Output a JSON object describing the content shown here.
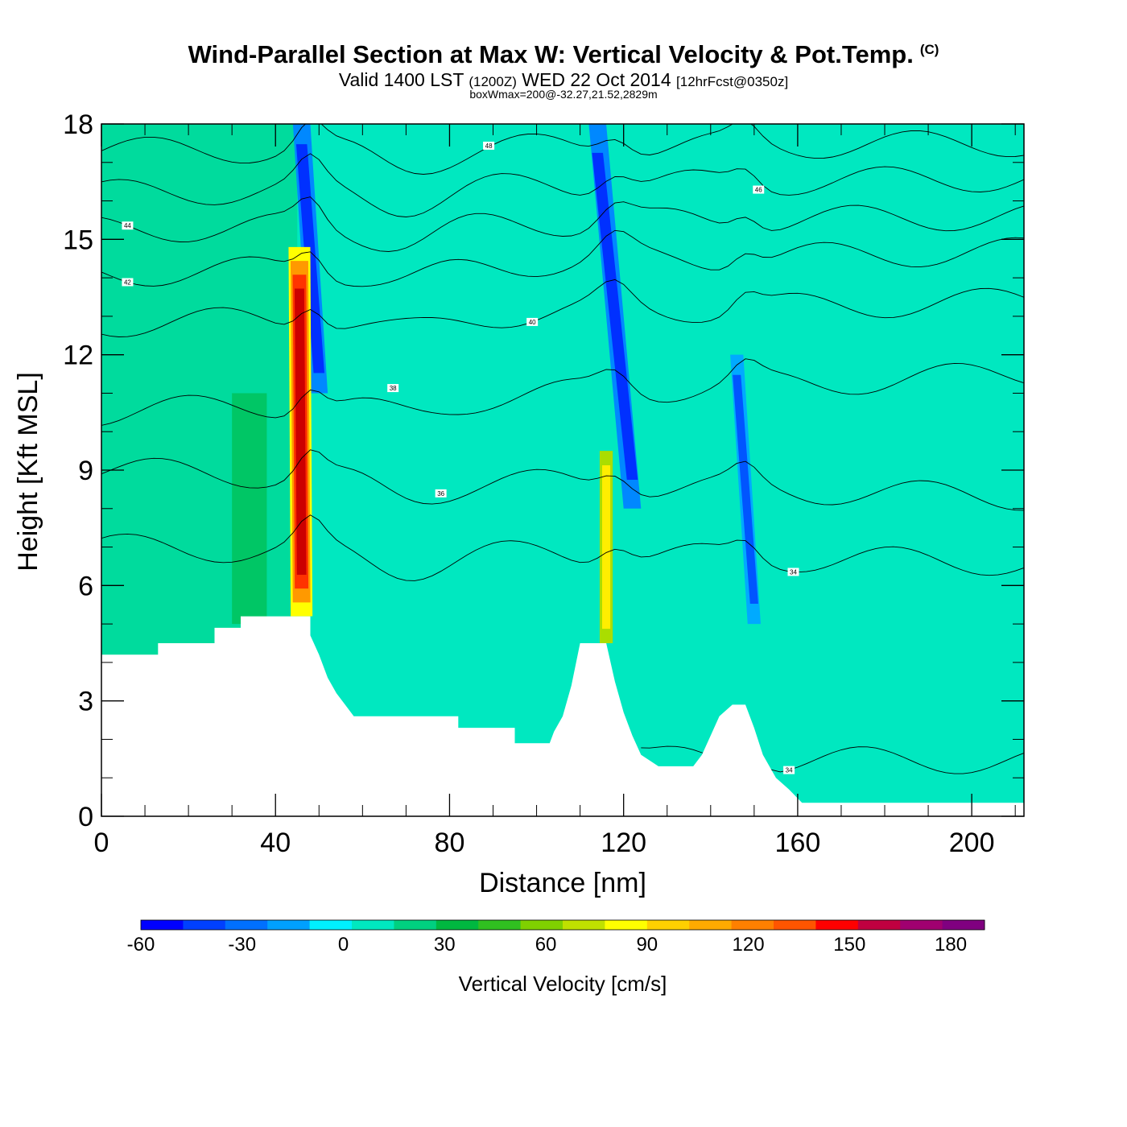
{
  "chart_data": {
    "type": "heatmap",
    "title": "Wind-Parallel Section at Max W: Vertical Velocity & Pot.Temp.",
    "title_mark": "(C)",
    "subtitle": {
      "valid_prefix": "Valid 1400 LST",
      "utc": "(1200Z)",
      "date": "WED 22 Oct 2014",
      "forecast": "[12hrFcst@0350z]"
    },
    "annotation": "boxWmax=200@-32.27,21.52,2829m",
    "xlabel": "Distance [nm]",
    "ylabel": "Height [Kft MSL]",
    "xlim": [
      0,
      212
    ],
    "ylim": [
      0,
      18
    ],
    "xticks": [
      {
        "value": 0,
        "label": "0"
      },
      {
        "value": 40,
        "label": "40"
      },
      {
        "value": 80,
        "label": "80"
      },
      {
        "value": 120,
        "label": "120"
      },
      {
        "value": 160,
        "label": "160"
      },
      {
        "value": 200,
        "label": "200"
      }
    ],
    "yticks": [
      {
        "value": 0,
        "label": "0"
      },
      {
        "value": 3,
        "label": "3"
      },
      {
        "value": 6,
        "label": "6"
      },
      {
        "value": 9,
        "label": "9"
      },
      {
        "value": 12,
        "label": "12"
      },
      {
        "value": 15,
        "label": "15"
      },
      {
        "value": 18,
        "label": "18"
      }
    ],
    "background_color": "#00e8c0",
    "velocity_features": [
      {
        "kind": "downdraft",
        "x_bottom": 50,
        "x_top": 46,
        "y_bottom": 11,
        "y_top": 18,
        "width": 4,
        "colors": [
          "#0088ff",
          "#0030ff"
        ]
      },
      {
        "kind": "updraft",
        "x_bottom": 46,
        "x_top": 45.5,
        "y_bottom": 5.2,
        "y_top": 14.8,
        "width": 5,
        "colors": [
          "#ffff00",
          "#ff9900",
          "#ff3300",
          "#cc0000"
        ]
      },
      {
        "kind": "downdraft",
        "x_bottom": 122,
        "x_top": 114,
        "y_bottom": 8,
        "y_top": 18,
        "width": 4,
        "colors": [
          "#0088ff",
          "#0030ff"
        ]
      },
      {
        "kind": "updraft",
        "x_bottom": 116,
        "x_top": 116,
        "y_bottom": 4.5,
        "y_top": 9.5,
        "width": 3,
        "colors": [
          "#aadd00",
          "#ffee00"
        ]
      },
      {
        "kind": "downdraft",
        "x_bottom": 150,
        "x_top": 146,
        "y_bottom": 5,
        "y_top": 12,
        "width": 3,
        "colors": [
          "#00aaff",
          "#0055ff"
        ]
      }
    ],
    "terrain": [
      {
        "x": 0,
        "y": 4.2
      },
      {
        "x": 13,
        "y": 4.2
      },
      {
        "x": 13,
        "y": 4.5
      },
      {
        "x": 26,
        "y": 4.5
      },
      {
        "x": 26,
        "y": 4.9
      },
      {
        "x": 32,
        "y": 4.9
      },
      {
        "x": 32,
        "y": 5.2
      },
      {
        "x": 48,
        "y": 5.2
      },
      {
        "x": 48,
        "y": 4.7
      },
      {
        "x": 50,
        "y": 4.2
      },
      {
        "x": 52,
        "y": 3.6
      },
      {
        "x": 54,
        "y": 3.2
      },
      {
        "x": 56,
        "y": 2.9
      },
      {
        "x": 58,
        "y": 2.6
      },
      {
        "x": 82,
        "y": 2.6
      },
      {
        "x": 82,
        "y": 2.3
      },
      {
        "x": 95,
        "y": 2.3
      },
      {
        "x": 95,
        "y": 1.9
      },
      {
        "x": 103,
        "y": 1.9
      },
      {
        "x": 104,
        "y": 2.2
      },
      {
        "x": 106,
        "y": 2.6
      },
      {
        "x": 108,
        "y": 3.4
      },
      {
        "x": 110,
        "y": 4.5
      },
      {
        "x": 116,
        "y": 4.5
      },
      {
        "x": 118,
        "y": 3.5
      },
      {
        "x": 120,
        "y": 2.7
      },
      {
        "x": 122,
        "y": 2.1
      },
      {
        "x": 124,
        "y": 1.6
      },
      {
        "x": 128,
        "y": 1.3
      },
      {
        "x": 136,
        "y": 1.3
      },
      {
        "x": 138,
        "y": 1.6
      },
      {
        "x": 140,
        "y": 2.1
      },
      {
        "x": 142,
        "y": 2.6
      },
      {
        "x": 145,
        "y": 2.9
      },
      {
        "x": 148,
        "y": 2.9
      },
      {
        "x": 150,
        "y": 2.3
      },
      {
        "x": 152,
        "y": 1.6
      },
      {
        "x": 155,
        "y": 1.0
      },
      {
        "x": 158,
        "y": 0.7
      },
      {
        "x": 161,
        "y": 0.35
      },
      {
        "x": 212,
        "y": 0.35
      }
    ],
    "theta_contours": [
      {
        "label": "48",
        "y_left": 17.3,
        "y_right": 17.5,
        "label_x": 89
      },
      {
        "label": "46",
        "y_left": 16.2,
        "y_right": 16.6,
        "label_x": 151
      },
      {
        "label": "44",
        "y_left": 15.25,
        "y_right": 15.6,
        "label_x": 6
      },
      {
        "label": "42",
        "y_left": 14.1,
        "y_right": 14.7,
        "label_x": 6
      },
      {
        "label": "40",
        "y_left": 12.8,
        "y_right": 13.4,
        "label_x": 99
      },
      {
        "label": "38",
        "y_left": 10.5,
        "y_right": 11.5,
        "label_x": 67
      },
      {
        "label": "36",
        "y_left": 9.0,
        "y_right": 8.3,
        "label_x": 78
      },
      {
        "label": "34",
        "y_left": 7.0,
        "y_right": 6.6,
        "label_x": 159
      },
      {
        "label": "34",
        "y_left": 1.5,
        "y_right": 1.45,
        "label_x": 158
      }
    ],
    "colorbar": {
      "title": "Vertical Velocity [cm/s]",
      "colors": [
        "#0000ff",
        "#0040ff",
        "#0070ff",
        "#00a0ff",
        "#00f0ff",
        "#00e8c0",
        "#00d080",
        "#00b840",
        "#30c020",
        "#80d000",
        "#c0e000",
        "#ffff00",
        "#ffd000",
        "#ffaa00",
        "#ff8000",
        "#ff5500",
        "#ff0000",
        "#c00040",
        "#a00070",
        "#800080"
      ],
      "labels": [
        {
          "index": 0,
          "text": "-60"
        },
        {
          "index": 3,
          "text": "-30"
        },
        {
          "index": 6,
          "text": "0"
        },
        {
          "index": 9,
          "text": "30"
        },
        {
          "index": 12,
          "text": "60"
        },
        {
          "index": 15,
          "text": "90"
        },
        {
          "index": 18,
          "text": "120"
        },
        {
          "index": 21,
          "text": "150"
        },
        {
          "index": 24,
          "text": "180"
        }
      ]
    }
  }
}
